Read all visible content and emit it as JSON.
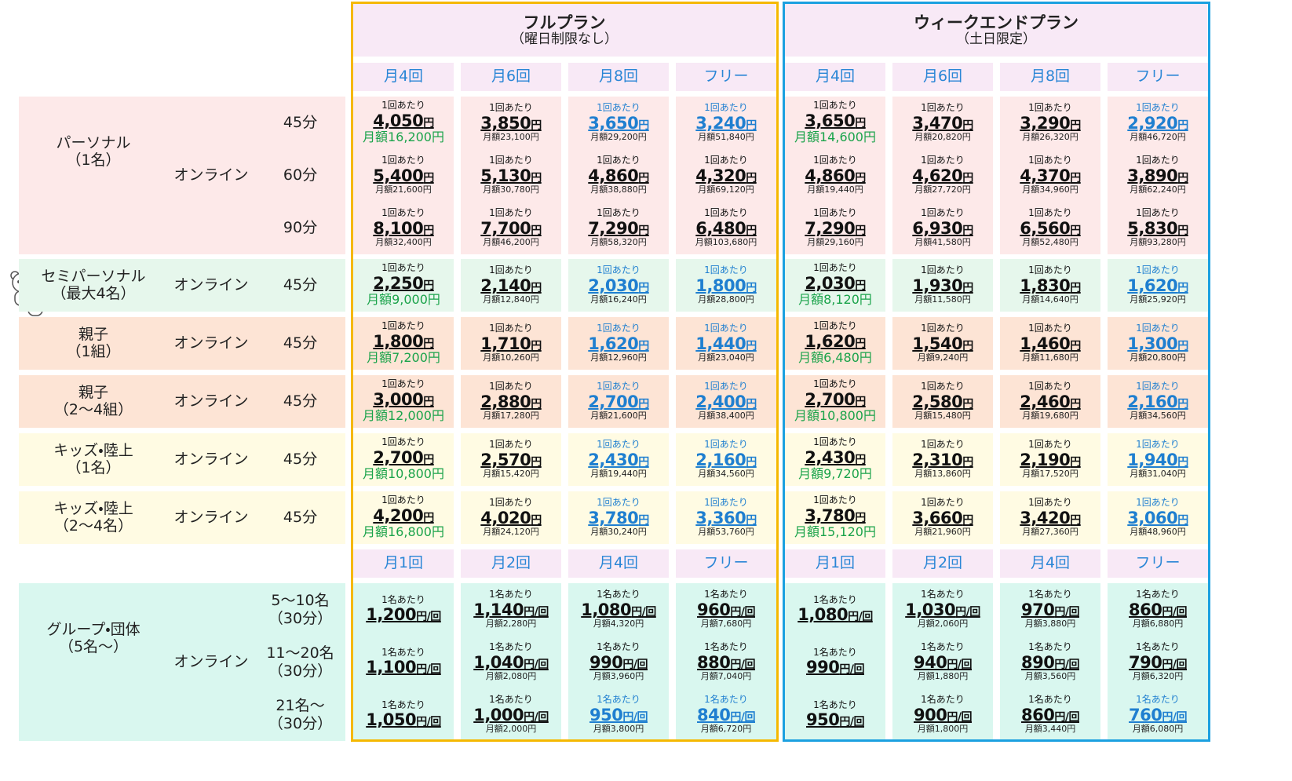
{
  "plans": [
    {
      "title": "フルプラン",
      "subtitle": "（曜日制限なし）",
      "frame_color": "#f5b800"
    },
    {
      "title": "ウィークエンドプラン",
      "subtitle": "（土日限定）",
      "frame_color": "#1ba0e0"
    }
  ],
  "frequency_headers": [
    "月4回",
    "月6回",
    "月8回",
    "フリー",
    "月4回",
    "月6回",
    "月8回",
    "フリー"
  ],
  "group_headers": [
    "月1回",
    "月2回",
    "月4回",
    "フリー",
    "月1回",
    "月2回",
    "月4回",
    "フリー"
  ],
  "sections": [
    {
      "label": "パーソナル",
      "sublabel": "（1名）",
      "mode": "オンライン",
      "background": "#fde9e9",
      "rows": [
        {
          "duration": "45分",
          "price_colors": [
            "#111",
            "#111",
            "#1f7fd0",
            "#1f7fd0",
            "#111",
            "#111",
            "#111",
            "#1f7fd0"
          ],
          "lead_monthly_color": "#1aa34a",
          "cells": [
            [
              "1回あたり",
              "4,050円",
              "月額16,200円"
            ],
            [
              "1回あたり",
              "3,850円",
              "月額23,100円"
            ],
            [
              "1回あたり",
              "3,650円",
              "月額29,200円"
            ],
            [
              "1回あたり",
              "3,240円",
              "月額51,840円"
            ],
            [
              "1回あたり",
              "3,650円",
              "月額14,600円"
            ],
            [
              "1回あたり",
              "3,470円",
              "月額20,820円"
            ],
            [
              "1回あたり",
              "3,290円",
              "月額26,320円"
            ],
            [
              "1回あたり",
              "2,920円",
              "月額46,720円"
            ]
          ]
        },
        {
          "duration": "60分",
          "price_colors": [
            "#111",
            "#111",
            "#111",
            "#111",
            "#111",
            "#111",
            "#111",
            "#111"
          ],
          "cells": [
            [
              "1回あたり",
              "5,400円",
              "月額21,600円"
            ],
            [
              "1回あたり",
              "5,130円",
              "月額30,780円"
            ],
            [
              "1回あたり",
              "4,860円",
              "月額38,880円"
            ],
            [
              "1回あたり",
              "4,320円",
              "月額69,120円"
            ],
            [
              "1回あたり",
              "4,860円",
              "月額19,440円"
            ],
            [
              "1回あたり",
              "4,620円",
              "月額27,720円"
            ],
            [
              "1回あたり",
              "4,370円",
              "月額34,960円"
            ],
            [
              "1回あたり",
              "3,890円",
              "月額62,240円"
            ]
          ]
        },
        {
          "duration": "90分",
          "price_colors": [
            "#111",
            "#111",
            "#111",
            "#111",
            "#111",
            "#111",
            "#111",
            "#111"
          ],
          "cells": [
            [
              "1回あたり",
              "8,100円",
              "月額32,400円"
            ],
            [
              "1回あたり",
              "7,700円",
              "月額46,200円"
            ],
            [
              "1回あたり",
              "7,290円",
              "月額58,320円"
            ],
            [
              "1回あたり",
              "6,480円",
              "月額103,680円"
            ],
            [
              "1回あたり",
              "7,290円",
              "月額29,160円"
            ],
            [
              "1回あたり",
              "6,930円",
              "月額41,580円"
            ],
            [
              "1回あたり",
              "6,560円",
              "月額52,480円"
            ],
            [
              "1回あたり",
              "5,830円",
              "月額93,280円"
            ]
          ]
        }
      ]
    },
    {
      "label": "セミパーソナル",
      "sublabel": "（最大4名）",
      "mode": "オンライン",
      "background": "#e6f7ec",
      "rows": [
        {
          "duration": "45分",
          "price_colors": [
            "#111",
            "#111",
            "#1f7fd0",
            "#1f7fd0",
            "#111",
            "#111",
            "#111",
            "#1f7fd0"
          ],
          "lead_monthly_color": "#1aa34a",
          "cells": [
            [
              "1回あたり",
              "2,250円",
              "月額9,000円"
            ],
            [
              "1回あたり",
              "2,140円",
              "月額12,840円"
            ],
            [
              "1回あたり",
              "2,030円",
              "月額16,240円"
            ],
            [
              "1回あたり",
              "1,800円",
              "月額28,800円"
            ],
            [
              "1回あたり",
              "2,030円",
              "月額8,120円"
            ],
            [
              "1回あたり",
              "1,930円",
              "月額11,580円"
            ],
            [
              "1回あたり",
              "1,830円",
              "月額14,640円"
            ],
            [
              "1回あたり",
              "1,620円",
              "月額25,920円"
            ]
          ]
        }
      ]
    },
    {
      "label": "親子",
      "sublabel": "（1組）",
      "mode": "オンライン",
      "background": "#fde4d5",
      "rows": [
        {
          "duration": "45分",
          "price_colors": [
            "#111",
            "#111",
            "#1f7fd0",
            "#1f7fd0",
            "#111",
            "#111",
            "#111",
            "#1f7fd0"
          ],
          "lead_monthly_color": "#1aa34a",
          "cells": [
            [
              "1回あたり",
              "1,800円",
              "月額7,200円"
            ],
            [
              "1回あたり",
              "1,710円",
              "月額10,260円"
            ],
            [
              "1回あたり",
              "1,620円",
              "月額12,960円"
            ],
            [
              "1回あたり",
              "1,440円",
              "月額23,040円"
            ],
            [
              "1回あたり",
              "1,620円",
              "月額6,480円"
            ],
            [
              "1回あたり",
              "1,540円",
              "月額9,240円"
            ],
            [
              "1回あたり",
              "1,460円",
              "月額11,680円"
            ],
            [
              "1回あたり",
              "1,300円",
              "月額20,800円"
            ]
          ]
        }
      ]
    },
    {
      "label": "親子",
      "sublabel": "（2～4組）",
      "mode": "オンライン",
      "background": "#fde4d5",
      "rows": [
        {
          "duration": "45分",
          "price_colors": [
            "#111",
            "#111",
            "#1f7fd0",
            "#1f7fd0",
            "#111",
            "#111",
            "#111",
            "#1f7fd0"
          ],
          "lead_monthly_color": "#1aa34a",
          "cells": [
            [
              "1回あたり",
              "3,000円",
              "月額12,000円"
            ],
            [
              "1回あたり",
              "2,880円",
              "月額17,280円"
            ],
            [
              "1回あたり",
              "2,700円",
              "月額21,600円"
            ],
            [
              "1回あたり",
              "2,400円",
              "月額38,400円"
            ],
            [
              "1回あたり",
              "2,700円",
              "月額10,800円"
            ],
            [
              "1回あたり",
              "2,580円",
              "月額15,480円"
            ],
            [
              "1回あたり",
              "2,460円",
              "月額19,680円"
            ],
            [
              "1回あたり",
              "2,160円",
              "月額34,560円"
            ]
          ]
        }
      ]
    },
    {
      "label": "キッズ・陸上",
      "sublabel": "（1名）",
      "mode": "オンライン",
      "background": "#fffbe3",
      "rows": [
        {
          "duration": "45分",
          "price_colors": [
            "#111",
            "#111",
            "#1f7fd0",
            "#1f7fd0",
            "#111",
            "#111",
            "#111",
            "#1f7fd0"
          ],
          "lead_monthly_color": "#1aa34a",
          "cells": [
            [
              "1回あたり",
              "2,700円",
              "月額10,800円"
            ],
            [
              "1回あたり",
              "2,570円",
              "月額15,420円"
            ],
            [
              "1回あたり",
              "2,430円",
              "月額19,440円"
            ],
            [
              "1回あたり",
              "2,160円",
              "月額34,560円"
            ],
            [
              "1回あたり",
              "2,430円",
              "月額9,720円"
            ],
            [
              "1回あたり",
              "2,310円",
              "月額13,860円"
            ],
            [
              "1回あたり",
              "2,190円",
              "月額17,520円"
            ],
            [
              "1回あたり",
              "1,940円",
              "月額31,040円"
            ]
          ]
        }
      ]
    },
    {
      "label": "キッズ・陸上",
      "sublabel": "（2～4名）",
      "mode": "オンライン",
      "background": "#fffbe3",
      "rows": [
        {
          "duration": "45分",
          "price_colors": [
            "#111",
            "#111",
            "#1f7fd0",
            "#1f7fd0",
            "#111",
            "#111",
            "#111",
            "#1f7fd0"
          ],
          "lead_monthly_color": "#1aa34a",
          "cells": [
            [
              "1回あたり",
              "4,200円",
              "月額16,800円"
            ],
            [
              "1回あたり",
              "4,020円",
              "月額24,120円"
            ],
            [
              "1回あたり",
              "3,780円",
              "月額30,240円"
            ],
            [
              "1回あたり",
              "3,360円",
              "月額53,760円"
            ],
            [
              "1回あたり",
              "3,780円",
              "月額15,120円"
            ],
            [
              "1回あたり",
              "3,660円",
              "月額21,960円"
            ],
            [
              "1回あたり",
              "3,420円",
              "月額27,360円"
            ],
            [
              "1回あたり",
              "3,060円",
              "月額48,960円"
            ]
          ]
        }
      ]
    },
    {
      "label": "グループ・団体",
      "sublabel": "（5名～）",
      "mode": "オンライン",
      "background": "#d9f7ef",
      "rows": [
        {
          "duration": "5～10名",
          "duration_note": "（30分）",
          "price_colors": [
            "#111",
            "#111",
            "#111",
            "#111",
            "#111",
            "#111",
            "#111",
            "#111"
          ],
          "cells": [
            [
              "1名あたり",
              "1,200円/回"
            ],
            [
              "1名あたり",
              "1,140円/回",
              "月額2,280円"
            ],
            [
              "1名あたり",
              "1,080円/回",
              "月額4,320円"
            ],
            [
              "1名あたり",
              "960円/回",
              "月額7,680円"
            ],
            [
              "1名あたり",
              "1,080円/回"
            ],
            [
              "1名あたり",
              "1,030円/回",
              "月額2,060円"
            ],
            [
              "1名あたり",
              "970円/回",
              "月額3,880円"
            ],
            [
              "1名あたり",
              "860円/回",
              "月額6,880円"
            ]
          ]
        },
        {
          "duration": "11～20名",
          "duration_note": "（30分）",
          "price_colors": [
            "#111",
            "#111",
            "#111",
            "#111",
            "#111",
            "#111",
            "#111",
            "#111"
          ],
          "cells": [
            [
              "1名あたり",
              "1,100円/回"
            ],
            [
              "1名あたり",
              "1,040円/回",
              "月額2,080円"
            ],
            [
              "1名あたり",
              "990円/回",
              "月額3,960円"
            ],
            [
              "1名あたり",
              "880円/回",
              "月額7,040円"
            ],
            [
              "1名あたり",
              "990円/回"
            ],
            [
              "1名あたり",
              "940円/回",
              "月額1,880円"
            ],
            [
              "1名あたり",
              "890円/回",
              "月額3,560円"
            ],
            [
              "1名あたり",
              "790円/回",
              "月額6,320円"
            ]
          ]
        },
        {
          "duration": "21名～",
          "duration_note": "（30分）",
          "price_colors": [
            "#111",
            "#111",
            "#1f7fd0",
            "#1f7fd0",
            "#111",
            "#111",
            "#111",
            "#1f7fd0"
          ],
          "cells": [
            [
              "1名あたり",
              "1,050円/回"
            ],
            [
              "1名あたり",
              "1,000円/回",
              "月額2,000円"
            ],
            [
              "1名あたり",
              "950円/回",
              "月額3,800円"
            ],
            [
              "1名あたり",
              "840円/回",
              "月額6,720円"
            ],
            [
              "1名あたり",
              "950円/回"
            ],
            [
              "1名あたり",
              "900円/回",
              "月額1,800円"
            ],
            [
              "1名あたり",
              "860円/回",
              "月額3,440円"
            ],
            [
              "1名あたり",
              "760円/回",
              "月額6,080円"
            ]
          ]
        }
      ]
    }
  ]
}
